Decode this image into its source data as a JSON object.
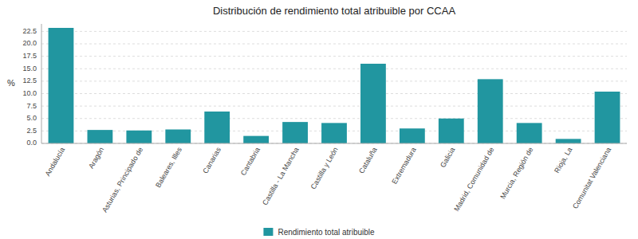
{
  "chart_data": {
    "type": "bar",
    "title": "Distribución de rendimiento total atribuible por CCAA",
    "ylabel": "%",
    "categories": [
      "Andalucía",
      "Aragón",
      "Asturias, Principado de",
      "Baleares, Illes",
      "Canarias",
      "Cantabria",
      "Castilla - La Mancha",
      "Castilla y León",
      "Cataluña",
      "Extremadura",
      "Galicia",
      "Madrid, Comunidad de",
      "Murcia, Región de",
      "Rioja, La",
      "Comunitat Valenciana"
    ],
    "series": [
      {
        "name": "Rendimiento total atribuible",
        "color": "#2196a0",
        "values": [
          23.2,
          2.7,
          2.6,
          2.8,
          6.4,
          1.5,
          4.3,
          4.1,
          16.0,
          3.0,
          5.0,
          12.9,
          4.1,
          0.9,
          10.4
        ]
      }
    ],
    "ylim": [
      0,
      24
    ],
    "yticks": [
      {
        "value": 0.0,
        "label": "0.0"
      },
      2.5,
      {
        "value": 5.0,
        "label": "5.0"
      },
      7.5,
      {
        "value": 10.0,
        "label": "10.0"
      },
      12.5,
      {
        "value": 15.0,
        "label": "15.0"
      },
      17.5,
      {
        "value": 20.0,
        "label": "20.0"
      },
      22.5
    ],
    "grid": true
  }
}
